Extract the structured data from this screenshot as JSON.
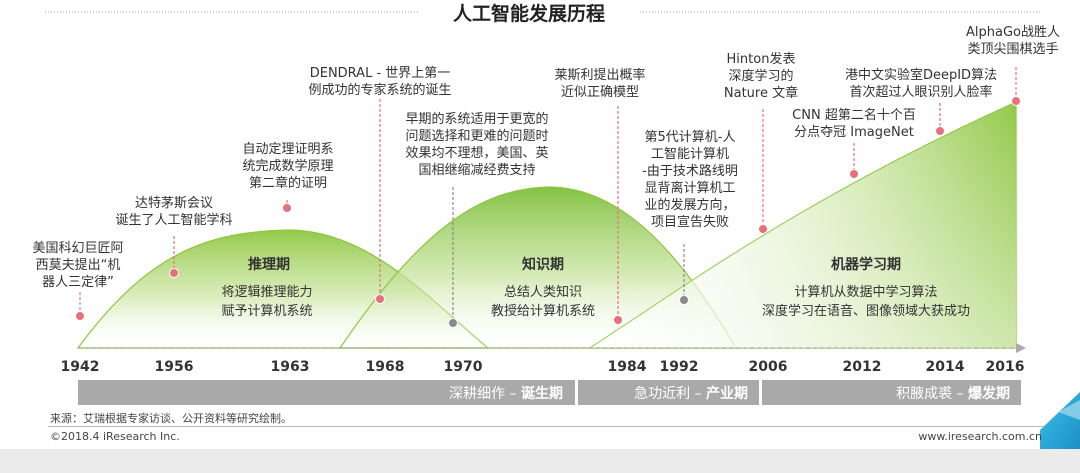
{
  "title": "人工智能发展历程",
  "phases": [
    {
      "name": "推理期",
      "desc": [
        "将逻辑推理能力",
        "赋予计算机系统"
      ]
    },
    {
      "name": "知识期",
      "desc": [
        "总结人类知识",
        "教授给计算机系统"
      ]
    },
    {
      "name": "机器学习期",
      "desc": [
        "计算机从数据中学习算法",
        "深度学习在语音、图像领域大获成功"
      ]
    }
  ],
  "years": [
    "1942",
    "1956",
    "1963",
    "1968",
    "1970",
    "1984",
    "1992",
    "2006",
    "2012",
    "2014",
    "2016"
  ],
  "events": [
    {
      "id": "e1942",
      "lines": [
        "美国科幻巨匠阿",
        "西莫夫提出“机",
        "器人三定律”"
      ],
      "color": "#e8707a"
    },
    {
      "id": "e1956",
      "lines": [
        "达特茅斯会议",
        "诞生了人工智能学科"
      ],
      "color": "#e8707a"
    },
    {
      "id": "e1963",
      "lines": [
        "自动定理证明系",
        "统完成数学原理",
        "第二章的证明"
      ],
      "color": "#e8707a"
    },
    {
      "id": "e1968",
      "lines": [
        "DENDRAL - 世界上第一",
        "例成功的专家系统的诞生"
      ],
      "color": "#e8707a"
    },
    {
      "id": "e1970",
      "lines": [
        "早期的系统适用于更宽的",
        "问题选择和更难的问题时",
        "效果均不理想，美国、英",
        "国相继缩减经费支持"
      ],
      "color": "#8a8a8a"
    },
    {
      "id": "e1984",
      "lines": [
        "莱斯利提出概率",
        "近似正确模型"
      ],
      "color": "#e8707a"
    },
    {
      "id": "e1992",
      "lines": [
        "第5代计算机-人",
        "工智能计算机",
        "-由于技术路线明",
        "显背离计算机工",
        "业的发展方向，",
        "项目宣告失败"
      ],
      "color": "#8a8a8a"
    },
    {
      "id": "e2006",
      "lines": [
        "Hinton发表",
        "深度学习的",
        "Nature 文章"
      ],
      "color": "#e8707a"
    },
    {
      "id": "e2012",
      "lines": [
        "CNN 超第二名十个百",
        "分点夺冠 ImageNet"
      ],
      "color": "#e8707a"
    },
    {
      "id": "e2014",
      "lines": [
        "港中文实验室DeepID算法",
        "首次超过人眼识别人脸率"
      ],
      "color": "#e8707a"
    },
    {
      "id": "e2016",
      "lines": [
        "AlphaGo战胜人",
        "类顶尖围棋选手"
      ],
      "color": "#e8707a"
    }
  ],
  "eras": [
    {
      "plain": "深耕细作 – ",
      "bold": "诞生期"
    },
    {
      "plain": "急功近利 – ",
      "bold": "产业期"
    },
    {
      "plain": "积腋成裘 – ",
      "bold": "爆发期"
    }
  ],
  "colors": {
    "green": "#8dc63f",
    "green_light": "#eef6dc",
    "marker_red": "#e8707a",
    "marker_gray": "#8a8a8a",
    "era_gray": "#a9a9a9",
    "teal": "#26a9e0"
  },
  "footer": {
    "source": "来源：艾瑞根据专家访谈、公开资料等研究绘制。",
    "copyright": "©2018.4 iResearch Inc.",
    "website": "www.iresearch.com.cn"
  }
}
